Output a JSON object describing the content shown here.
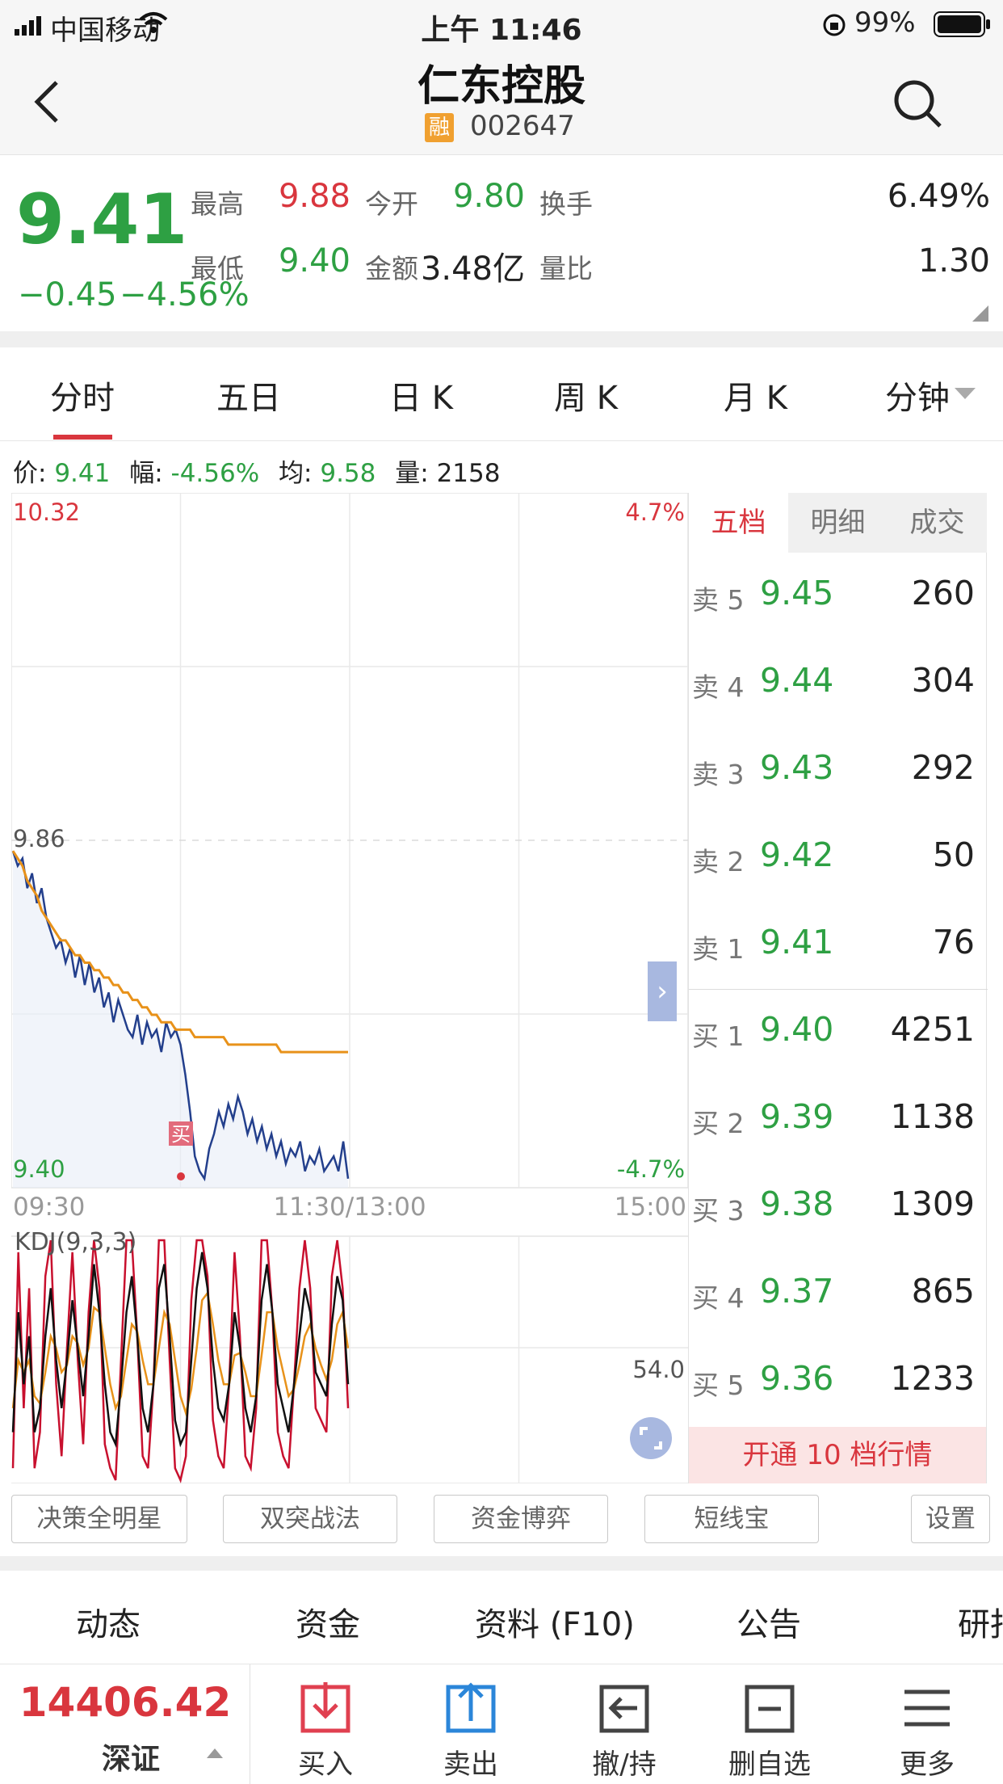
{
  "status": {
    "carrier": "中国移动",
    "time": "上午 11:46",
    "battery": "99%"
  },
  "header": {
    "title": "仁东控股",
    "badge": "融",
    "code": "002647"
  },
  "quote": {
    "price": "9.41",
    "change": "−0.45",
    "change_pct": "−4.56%",
    "fields": [
      {
        "label": "最高",
        "value": "9.88",
        "color": "#d9363e"
      },
      {
        "label": "今开",
        "value": "9.80",
        "color": "#2ea043"
      },
      {
        "label": "换手",
        "value": "6.49%",
        "color": "#222222"
      },
      {
        "label": "最低",
        "value": "9.40",
        "color": "#2ea043"
      },
      {
        "label": "金额",
        "value": "3.48亿",
        "color": "#222222"
      },
      {
        "label": "量比",
        "value": "1.30",
        "color": "#222222"
      }
    ]
  },
  "tabs": {
    "items": [
      "分时",
      "五日",
      "日 K",
      "周 K",
      "月 K",
      "分钟"
    ],
    "active": "分时"
  },
  "info": {
    "price_label": "价:",
    "price": "9.41",
    "amp_label": "幅:",
    "amp": "-4.56%",
    "avg_label": "均:",
    "avg": "9.58",
    "vol_label": "量:",
    "vol": "2158"
  },
  "chart_data": {
    "type": "line",
    "title": "",
    "y_labels": {
      "top": "10.32",
      "mid": "9.86",
      "bottom": "9.40",
      "top_pct": "4.7%",
      "bottom_pct": "-4.7%"
    },
    "x_labels": [
      "09:30",
      "11:30/13:00",
      "15:00"
    ],
    "ylim": [
      9.4,
      10.32
    ],
    "series": [
      {
        "values": [
          9.85,
          9.83,
          9.84,
          9.8,
          9.82,
          9.78,
          9.8,
          9.76,
          9.74,
          9.72,
          9.73,
          9.7,
          9.72,
          9.68,
          9.71,
          9.67,
          9.7,
          9.66,
          9.68,
          9.64,
          9.66,
          9.62,
          9.65,
          9.63,
          9.61,
          9.6,
          9.63,
          9.59,
          9.62,
          9.6,
          9.61,
          9.58,
          9.62,
          9.6,
          9.61,
          9.59,
          9.55,
          9.5,
          9.44,
          9.42,
          9.41,
          9.45,
          9.47,
          9.5,
          9.48,
          9.51,
          9.49,
          9.52,
          9.5,
          9.47,
          9.49,
          9.46,
          9.48,
          9.45,
          9.47,
          9.44,
          9.46,
          9.43,
          9.45,
          9.44,
          9.46,
          9.42,
          9.44,
          9.43,
          9.45,
          9.42,
          9.43,
          9.44,
          9.42,
          9.46,
          9.41
        ],
        "color": "#233f8c"
      },
      {
        "values": [
          9.85,
          9.84,
          9.83,
          9.81,
          9.8,
          9.79,
          9.77,
          9.76,
          9.75,
          9.74,
          9.73,
          9.73,
          9.72,
          9.71,
          9.71,
          9.7,
          9.7,
          9.69,
          9.69,
          9.68,
          9.68,
          9.67,
          9.67,
          9.66,
          9.66,
          9.65,
          9.65,
          9.64,
          9.64,
          9.63,
          9.63,
          9.62,
          9.62,
          9.62,
          9.61,
          9.61,
          9.61,
          9.61,
          9.6,
          9.6,
          9.6,
          9.6,
          9.6,
          9.6,
          9.6,
          9.59,
          9.59,
          9.59,
          9.59,
          9.59,
          9.59,
          9.59,
          9.59,
          9.59,
          9.59,
          9.59,
          9.58,
          9.58,
          9.58,
          9.58,
          9.58,
          9.58,
          9.58,
          9.58,
          9.58,
          9.58,
          9.58,
          9.58,
          9.58,
          9.58,
          9.58
        ],
        "color": "#e8921a"
      }
    ],
    "buy_marker_label": "买",
    "kdj": {
      "label": "KDJ(9,3,3)",
      "ref_label": "54.0",
      "ylim": [
        0,
        100
      ],
      "k": [
        20,
        70,
        40,
        60,
        20,
        30,
        60,
        80,
        50,
        30,
        50,
        75,
        55,
        35,
        60,
        90,
        70,
        40,
        20,
        15,
        40,
        70,
        85,
        60,
        30,
        20,
        40,
        80,
        90,
        60,
        25,
        15,
        20,
        50,
        80,
        95,
        80,
        50,
        30,
        25,
        40,
        70,
        55,
        30,
        20,
        35,
        75,
        90,
        70,
        40,
        30,
        20,
        40,
        60,
        80,
        70,
        45,
        40,
        35,
        65,
        85,
        75,
        40
      ],
      "d": [
        30,
        50,
        45,
        50,
        35,
        32,
        45,
        60,
        55,
        45,
        48,
        60,
        57,
        48,
        55,
        72,
        70,
        55,
        40,
        30,
        35,
        50,
        65,
        62,
        50,
        40,
        40,
        55,
        70,
        65,
        50,
        35,
        28,
        38,
        55,
        75,
        78,
        65,
        50,
        40,
        40,
        52,
        53,
        45,
        35,
        35,
        52,
        70,
        70,
        55,
        45,
        35,
        38,
        48,
        60,
        65,
        55,
        48,
        42,
        50,
        65,
        70,
        55
      ],
      "j": [
        5,
        95,
        30,
        80,
        5,
        20,
        85,
        100,
        40,
        10,
        55,
        95,
        50,
        15,
        70,
        100,
        80,
        15,
        5,
        0,
        50,
        100,
        100,
        60,
        10,
        5,
        40,
        100,
        100,
        50,
        5,
        0,
        10,
        75,
        100,
        100,
        85,
        25,
        10,
        5,
        40,
        95,
        60,
        10,
        5,
        30,
        100,
        100,
        70,
        20,
        10,
        5,
        40,
        80,
        100,
        80,
        30,
        25,
        20,
        85,
        100,
        80,
        30
      ],
      "colors": {
        "k": "#111111",
        "d": "#e8921a",
        "j": "#c8102e"
      }
    }
  },
  "orderbook": {
    "tabs": [
      "五档",
      "明细",
      "成交"
    ],
    "asks": [
      {
        "label": "卖 5",
        "price": "9.45",
        "vol": "260"
      },
      {
        "label": "卖 4",
        "price": "9.44",
        "vol": "304"
      },
      {
        "label": "卖 3",
        "price": "9.43",
        "vol": "292"
      },
      {
        "label": "卖 2",
        "price": "9.42",
        "vol": "50"
      },
      {
        "label": "卖 1",
        "price": "9.41",
        "vol": "76"
      }
    ],
    "bids": [
      {
        "label": "买 1",
        "price": "9.40",
        "vol": "4251"
      },
      {
        "label": "买 2",
        "price": "9.39",
        "vol": "1138"
      },
      {
        "label": "买 3",
        "price": "9.38",
        "vol": "1309"
      },
      {
        "label": "买 4",
        "price": "9.37",
        "vol": "865"
      },
      {
        "label": "买 5",
        "price": "9.36",
        "vol": "1233"
      }
    ],
    "upgrade": "开通 10 档行情"
  },
  "plugins": [
    "决策全明星",
    "双突战法",
    "资金博弈",
    "短线宝",
    "设置"
  ],
  "bottom_tabs": {
    "items": [
      "动态",
      "资金",
      "资料 (F10)",
      "公告",
      "研报"
    ],
    "active": "动态"
  },
  "index": {
    "value": "14406.42",
    "name": "深证"
  },
  "toolbar": [
    "买入",
    "卖出",
    "撤/持",
    "删自选",
    "更多"
  ]
}
